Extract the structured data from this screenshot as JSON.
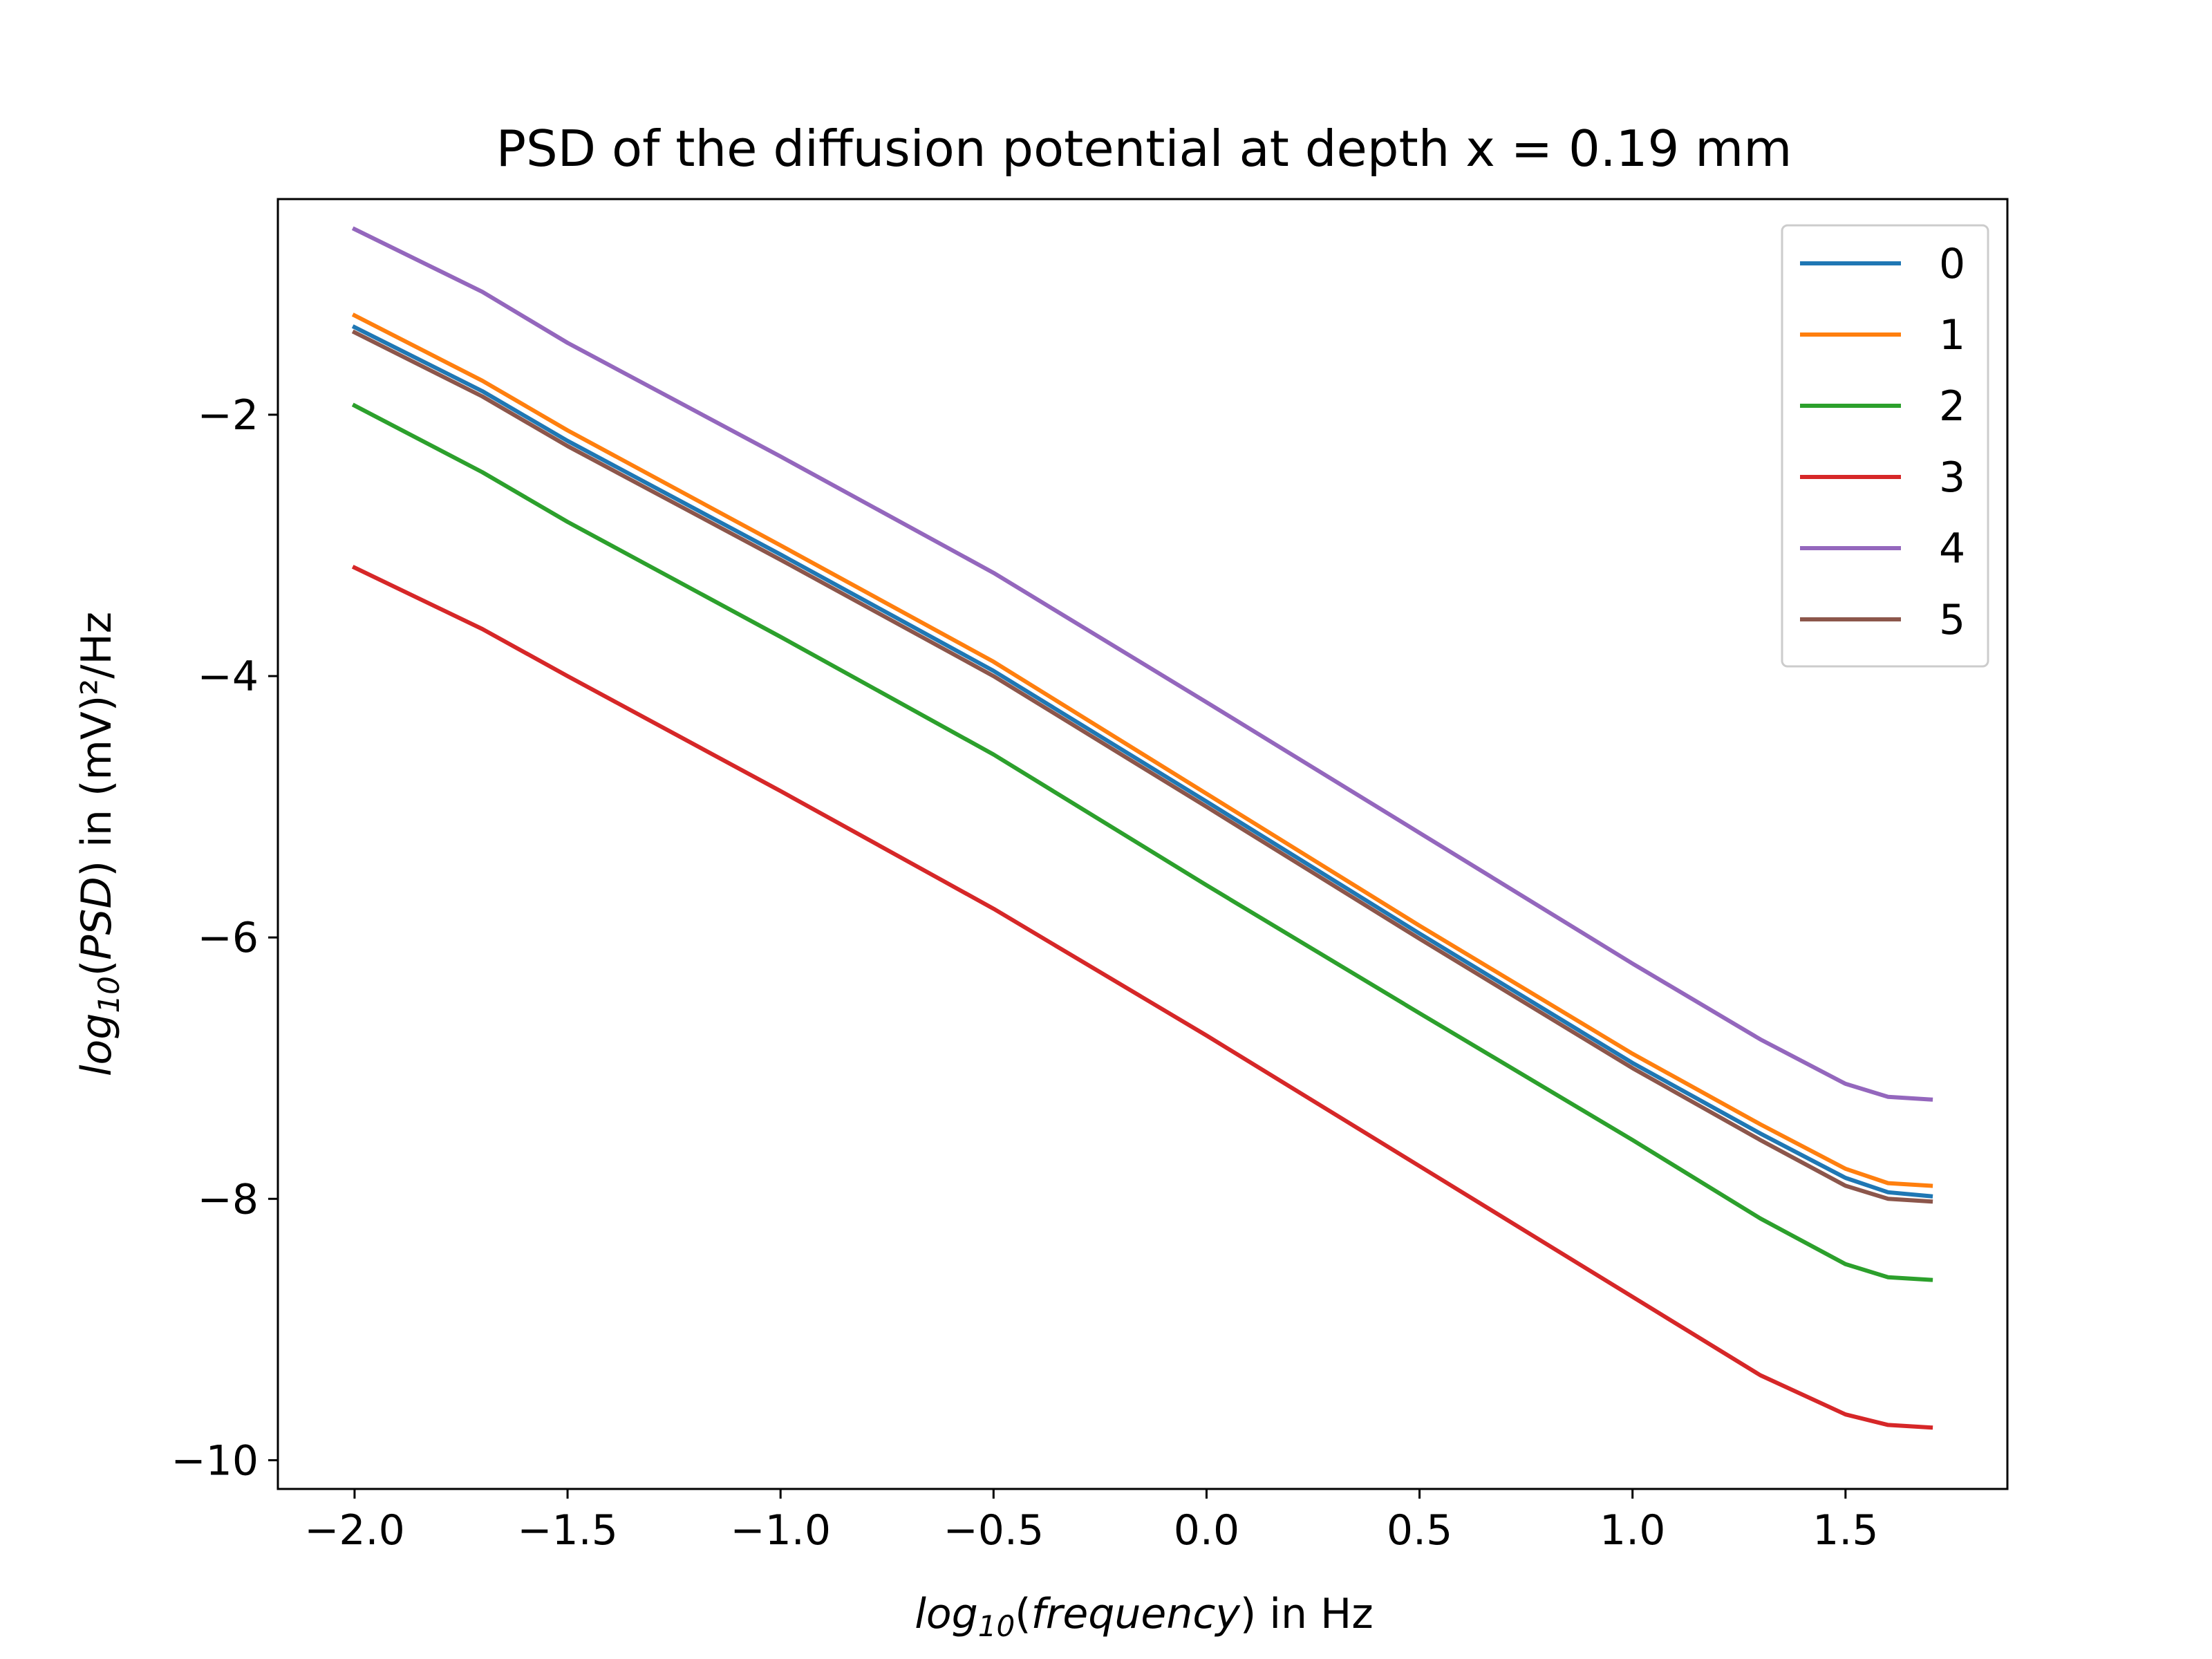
{
  "chart_data": {
    "type": "line",
    "title": "PSD of the diffusion potential at depth x = 0.19 mm",
    "xlabel": {
      "italic": "log",
      "sub": "10",
      "italic_arg": "frequency",
      "suffix": " in Hz"
    },
    "ylabel": {
      "italic": "log",
      "sub": "10",
      "italic_arg": "PSD",
      "suffix": " in (mV)²/Hz"
    },
    "xlim": [
      -2.18,
      1.88
    ],
    "ylim": [
      -10.22,
      -0.35
    ],
    "xticks": [
      -2.0,
      -1.5,
      -1.0,
      -0.5,
      0.0,
      0.5,
      1.0,
      1.5
    ],
    "xtick_labels": [
      "−2.0",
      "−1.5",
      "−1.0",
      "−0.5",
      "0.0",
      "0.5",
      "1.0",
      "1.5"
    ],
    "yticks": [
      -2,
      -4,
      -6,
      -8,
      -10
    ],
    "ytick_labels": [
      "−2",
      "−4",
      "−6",
      "−8",
      "−10"
    ],
    "grid": false,
    "legend_position": "top-right",
    "x": [
      -2.0,
      -1.7,
      -1.5,
      -1.0,
      -0.5,
      0.0,
      0.5,
      1.0,
      1.3,
      1.5,
      1.6,
      1.7
    ],
    "series": [
      {
        "name": "0",
        "color": "#1f77b4",
        "values": [
          -1.33,
          -1.82,
          -2.2,
          -3.07,
          -3.96,
          -4.96,
          -5.97,
          -6.96,
          -7.5,
          -7.84,
          -7.95,
          -7.98
        ]
      },
      {
        "name": "1",
        "color": "#ff7f0e",
        "values": [
          -1.24,
          -1.74,
          -2.12,
          -3.0,
          -3.89,
          -4.9,
          -5.91,
          -6.89,
          -7.43,
          -7.77,
          -7.88,
          -7.9
        ]
      },
      {
        "name": "2",
        "color": "#2ca02c",
        "values": [
          -1.93,
          -2.44,
          -2.82,
          -3.7,
          -4.6,
          -5.6,
          -6.58,
          -7.55,
          -8.15,
          -8.5,
          -8.6,
          -8.62
        ]
      },
      {
        "name": "3",
        "color": "#d62728",
        "values": [
          -3.17,
          -3.64,
          -4.0,
          -4.88,
          -5.78,
          -6.75,
          -7.75,
          -8.75,
          -9.35,
          -9.65,
          -9.73,
          -9.75
        ]
      },
      {
        "name": "4",
        "color": "#9467bd",
        "values": [
          -0.58,
          -1.06,
          -1.45,
          -2.32,
          -3.21,
          -4.2,
          -5.2,
          -6.2,
          -6.78,
          -7.12,
          -7.22,
          -7.24
        ]
      },
      {
        "name": "5",
        "color": "#8c564b",
        "values": [
          -1.37,
          -1.86,
          -2.24,
          -3.11,
          -4.0,
          -5.0,
          -6.01,
          -7.0,
          -7.55,
          -7.9,
          -8.0,
          -8.02
        ]
      }
    ]
  }
}
